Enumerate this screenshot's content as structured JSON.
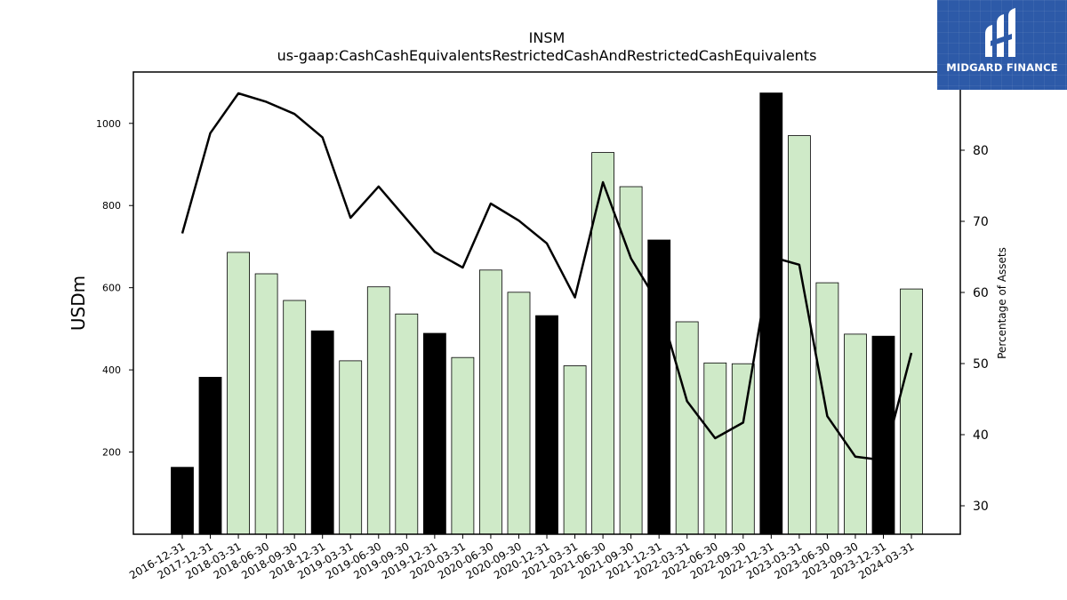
{
  "brand": {
    "name": "MIDGARD FINANCE"
  },
  "chart_data": {
    "type": "bar",
    "title": "INSM",
    "subtitle": "us-gaap:CashCashEquivalentsRestrictedCashAndRestrictedCashEquivalents",
    "ylabel": "USDm",
    "y2label": "Percentage of Assets",
    "ylim": [
      0,
      1125
    ],
    "y2lim": [
      26,
      91
    ],
    "yticks": [
      200,
      400,
      600,
      800,
      1000
    ],
    "y2ticks": [
      30,
      40,
      50,
      60,
      70,
      80
    ],
    "categories": [
      "2016-12-31",
      "2017-12-31",
      "2018-03-31",
      "2018-06-30",
      "2018-09-30",
      "2018-12-31",
      "2019-03-31",
      "2019-06-30",
      "2019-09-30",
      "2019-12-31",
      "2020-03-31",
      "2020-06-30",
      "2020-09-30",
      "2020-12-31",
      "2021-03-31",
      "2021-06-30",
      "2021-09-30",
      "2021-12-31",
      "2022-03-31",
      "2022-06-30",
      "2022-09-30",
      "2022-12-31",
      "2023-03-31",
      "2023-06-30",
      "2023-09-30",
      "2023-12-31",
      "2024-03-31"
    ],
    "series": [
      {
        "type": "bar",
        "values": [
          163,
          382,
          686,
          634,
          569,
          495,
          422,
          602,
          536,
          489,
          430,
          643,
          589,
          532,
          410,
          929,
          846,
          716,
          517,
          417,
          415,
          1074,
          970,
          612,
          487,
          482,
          597
        ],
        "highlight": [
          true,
          true,
          false,
          false,
          false,
          true,
          false,
          false,
          false,
          true,
          false,
          false,
          false,
          true,
          false,
          false,
          false,
          true,
          false,
          false,
          false,
          true,
          false,
          false,
          false,
          true,
          false
        ]
      },
      {
        "type": "line",
        "axis": "right",
        "values": [
          68.3,
          82.4,
          88.0,
          86.8,
          85.1,
          81.8,
          70.5,
          74.9,
          70.3,
          65.7,
          63.5,
          72.5,
          70.1,
          66.9,
          59.3,
          75.5,
          64.8,
          58.3,
          44.7,
          39.5,
          41.7,
          65.0,
          63.9,
          42.6,
          36.9,
          36.4,
          51.5
        ]
      }
    ],
    "colors": {
      "bar": "#cfeac8",
      "highlight": "#000000",
      "line": "#000000",
      "edge": "#000000"
    },
    "grid": false
  }
}
